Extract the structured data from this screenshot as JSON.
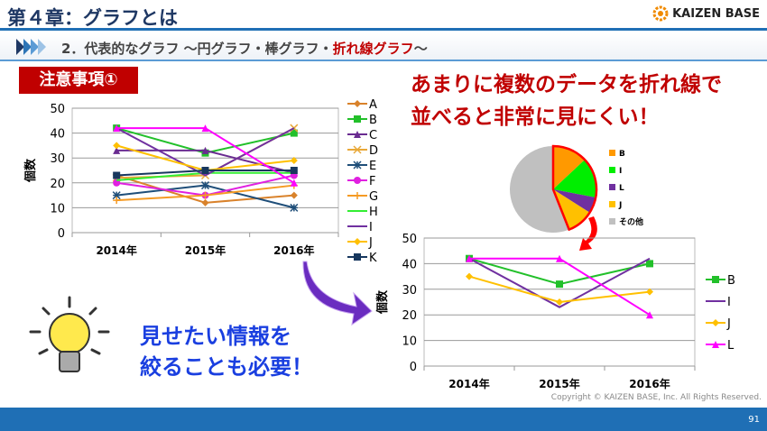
{
  "header": {
    "title": "第４章：グラフとは",
    "logo": "KAIZEN BASE",
    "subtitle_prefix": "2．代表的なグラフ ～円グラフ・棒グラフ・",
    "subtitle_highlight": "折れ線グラフ",
    "subtitle_suffix": "～"
  },
  "note_label": "注意事項①",
  "warning": {
    "line1": "あまりに複数のデータを折れ線で",
    "line2": "並べると非常に見にくい！"
  },
  "tip": {
    "line1": "見せたい情報を",
    "line2": "絞ることも必要！"
  },
  "footer": {
    "copyright": "Copyright ©  KAIZEN BASE, Inc.  All Rights Reserved.",
    "page": "91"
  },
  "chart_data": [
    {
      "type": "line",
      "ylabel": "個数",
      "ylim": [
        0,
        50
      ],
      "yticks": [
        0,
        10,
        20,
        30,
        40,
        50
      ],
      "categories": [
        "2014年",
        "2015年",
        "2016年"
      ],
      "grid": true,
      "legend": "right",
      "series": [
        {
          "name": "A",
          "values": [
            23,
            12,
            15
          ],
          "color": "#d9822b",
          "marker": "diamond"
        },
        {
          "name": "B",
          "values": [
            42,
            32,
            40
          ],
          "color": "#22c02a",
          "marker": "square"
        },
        {
          "name": "C",
          "values": [
            33,
            33,
            24
          ],
          "color": "#6a2c91",
          "marker": "triangle"
        },
        {
          "name": "D",
          "values": [
            22,
            23,
            42
          ],
          "color": "#e8a838",
          "marker": "x"
        },
        {
          "name": "E",
          "values": [
            15,
            19,
            10
          ],
          "color": "#1f4e79",
          "marker": "star"
        },
        {
          "name": "F",
          "values": [
            20,
            15,
            23
          ],
          "color": "#e020e0",
          "marker": "circle"
        },
        {
          "name": "G",
          "values": [
            13,
            15,
            19
          ],
          "color": "#f59a23",
          "marker": "plus"
        },
        {
          "name": "H",
          "values": [
            21,
            24,
            24
          ],
          "color": "#33ee33",
          "marker": "none"
        },
        {
          "name": "I",
          "values": [
            42,
            23,
            42
          ],
          "color": "#7030a0",
          "marker": "none"
        },
        {
          "name": "J",
          "values": [
            35,
            25,
            29
          ],
          "color": "#ffc000",
          "marker": "diamond"
        },
        {
          "name": "K",
          "values": [
            23,
            25,
            25
          ],
          "color": "#17375e",
          "marker": "square"
        },
        {
          "values": [
            42,
            42,
            20
          ],
          "color": "#ff00ff",
          "marker": "triangle"
        }
      ]
    },
    {
      "type": "pie",
      "slices": [
        {
          "name": "B",
          "value": 13,
          "color": "#ff9900"
        },
        {
          "name": "I",
          "value": 15,
          "color": "#00ee00"
        },
        {
          "name": "L",
          "value": 6,
          "color": "#7030a0"
        },
        {
          "name": "J",
          "value": 10,
          "color": "#ffc000"
        },
        {
          "name": "その他",
          "value": 56,
          "color": "#c0c0c0"
        }
      ],
      "highlight_color": "#ff0000"
    },
    {
      "type": "line",
      "ylabel": "個数",
      "ylim": [
        0,
        50
      ],
      "yticks": [
        0,
        10,
        20,
        30,
        40,
        50
      ],
      "categories": [
        "2014年",
        "2015年",
        "2016年"
      ],
      "grid": true,
      "legend": "right",
      "series": [
        {
          "name": "B",
          "values": [
            42,
            32,
            40
          ],
          "color": "#22c02a",
          "marker": "square"
        },
        {
          "name": "I",
          "values": [
            42,
            23,
            42
          ],
          "color": "#7030a0",
          "marker": "none"
        },
        {
          "name": "J",
          "values": [
            35,
            25,
            29
          ],
          "color": "#ffc000",
          "marker": "diamond"
        },
        {
          "name": "L",
          "values": [
            42,
            42,
            20
          ],
          "color": "#ff00ff",
          "marker": "triangle"
        }
      ]
    }
  ]
}
